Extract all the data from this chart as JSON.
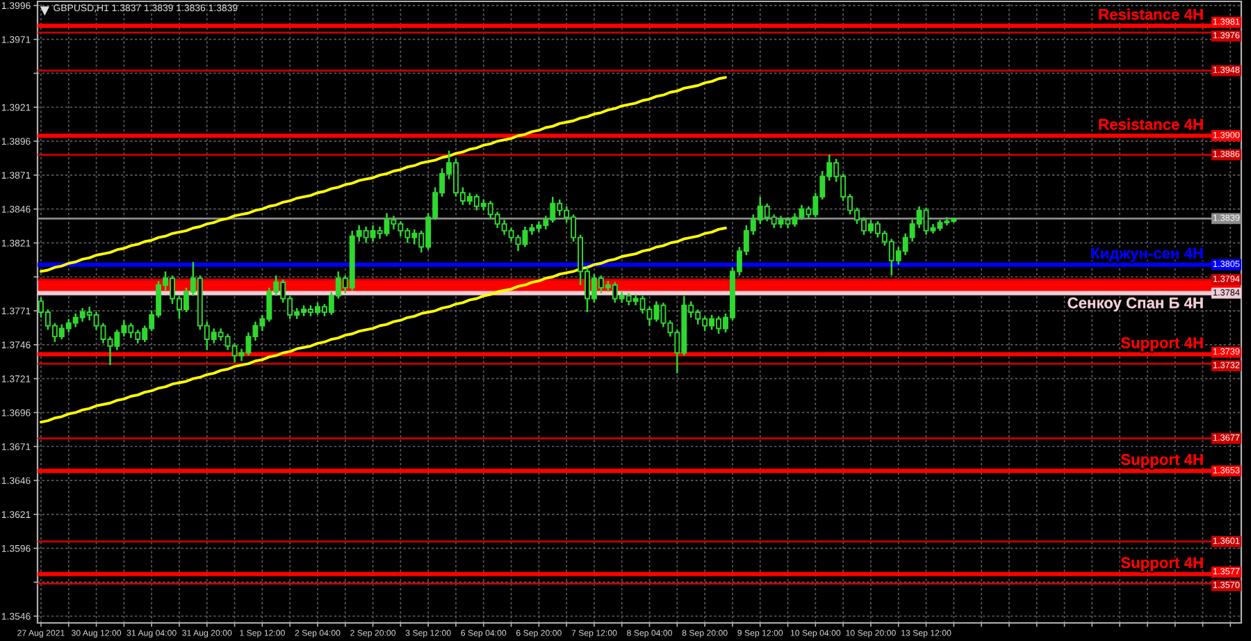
{
  "chart_data": {
    "type": "candlestick",
    "title": "GBPUSD,H1 1.3837 1.3839 1.3836 1.3839",
    "categories": [
      "27 Aug 2021",
      null,
      null,
      null,
      null,
      null,
      null,
      null,
      "30 Aug 12:00",
      null,
      null,
      null,
      null,
      null,
      null,
      null,
      "31 Aug 04:00",
      null,
      null,
      null,
      null,
      null,
      null,
      null,
      "31 Aug 20:00",
      null,
      null,
      null,
      null,
      null,
      null,
      null,
      "1 Sep 12:00",
      null,
      null,
      null,
      null,
      null,
      null,
      null,
      "2 Sep 04:00",
      null,
      null,
      null,
      null,
      null,
      null,
      null,
      "2 Sep 20:00",
      null,
      null,
      null,
      null,
      null,
      null,
      null,
      "3 Sep 12:00",
      null,
      null,
      null,
      null,
      null,
      null,
      null,
      "6 Sep 04:00",
      null,
      null,
      null,
      null,
      null,
      null,
      null,
      "6 Sep 20:00",
      null,
      null,
      null,
      null,
      null,
      null,
      null,
      "7 Sep 12:00",
      null,
      null,
      null,
      null,
      null,
      null,
      null,
      "8 Sep 04:00",
      null,
      null,
      null,
      null,
      null,
      null,
      null,
      "8 Sep 20:00",
      null,
      null,
      null,
      null,
      null,
      null,
      null,
      "9 Sep 12:00",
      null,
      null,
      null,
      null,
      null,
      null,
      null,
      "10 Sep 04:00",
      null,
      null,
      null,
      null,
      null,
      null,
      null,
      "10 Sep 20:00",
      null,
      null,
      null,
      null,
      null,
      null,
      null,
      "13 Sep 12:00",
      null,
      null,
      null,
      null
    ],
    "ohlc": [
      [
        1.3778,
        1.3781,
        1.3766,
        1.377
      ],
      [
        1.377,
        1.3772,
        1.3757,
        1.376
      ],
      [
        1.376,
        1.3762,
        1.3748,
        1.3752
      ],
      [
        1.3752,
        1.3761,
        1.375,
        1.3758
      ],
      [
        1.3758,
        1.3765,
        1.3755,
        1.3762
      ],
      [
        1.3762,
        1.3769,
        1.3759,
        1.3766
      ],
      [
        1.3766,
        1.3773,
        1.3763,
        1.377
      ],
      [
        1.377,
        1.3774,
        1.3764,
        1.3768
      ],
      [
        1.3768,
        1.377,
        1.3757,
        1.376
      ],
      [
        1.376,
        1.3762,
        1.3747,
        1.375
      ],
      [
        1.375,
        1.3752,
        1.3731,
        1.3745
      ],
      [
        1.3745,
        1.3757,
        1.3742,
        1.3755
      ],
      [
        1.3755,
        1.3764,
        1.3752,
        1.376
      ],
      [
        1.376,
        1.3762,
        1.3751,
        1.3755
      ],
      [
        1.3755,
        1.3757,
        1.3747,
        1.375
      ],
      [
        1.375,
        1.376,
        1.3748,
        1.3758
      ],
      [
        1.3758,
        1.3771,
        1.3756,
        1.3768
      ],
      [
        1.3768,
        1.3793,
        1.3766,
        1.379
      ],
      [
        1.379,
        1.38,
        1.3786,
        1.3795
      ],
      [
        1.3795,
        1.3797,
        1.3776,
        1.378
      ],
      [
        1.378,
        1.3782,
        1.3765,
        1.3772
      ],
      [
        1.3772,
        1.3788,
        1.377,
        1.3785
      ],
      [
        1.3785,
        1.3807,
        1.3782,
        1.3795
      ],
      [
        1.3795,
        1.3797,
        1.3757,
        1.376
      ],
      [
        1.376,
        1.3763,
        1.3742,
        1.375
      ],
      [
        1.375,
        1.3758,
        1.3747,
        1.3755
      ],
      [
        1.3755,
        1.3758,
        1.3749,
        1.3752
      ],
      [
        1.3752,
        1.3754,
        1.3742,
        1.3745
      ],
      [
        1.3745,
        1.3747,
        1.3733,
        1.3738
      ],
      [
        1.3738,
        1.3743,
        1.3734,
        1.374
      ],
      [
        1.374,
        1.3755,
        1.3738,
        1.3752
      ],
      [
        1.3752,
        1.3763,
        1.3749,
        1.376
      ],
      [
        1.376,
        1.3768,
        1.3756,
        1.3765
      ],
      [
        1.3765,
        1.3788,
        1.3763,
        1.3785
      ],
      [
        1.3785,
        1.3797,
        1.3782,
        1.3792
      ],
      [
        1.3792,
        1.3794,
        1.3777,
        1.378
      ],
      [
        1.378,
        1.3782,
        1.3765,
        1.3768
      ],
      [
        1.3768,
        1.3773,
        1.3765,
        1.377
      ],
      [
        1.377,
        1.3775,
        1.3767,
        1.3772
      ],
      [
        1.3772,
        1.3775,
        1.3767,
        1.377
      ],
      [
        1.377,
        1.3777,
        1.3768,
        1.3774
      ],
      [
        1.3774,
        1.3776,
        1.3767,
        1.377
      ],
      [
        1.377,
        1.3785,
        1.3768,
        1.3782
      ],
      [
        1.3782,
        1.38,
        1.378,
        1.3795
      ],
      [
        1.3795,
        1.3797,
        1.3784,
        1.3788
      ],
      [
        1.3788,
        1.383,
        1.3786,
        1.3826
      ],
      [
        1.3826,
        1.3834,
        1.3822,
        1.383
      ],
      [
        1.383,
        1.3833,
        1.3821,
        1.3825
      ],
      [
        1.3825,
        1.3834,
        1.3822,
        1.383
      ],
      [
        1.383,
        1.3833,
        1.3824,
        1.3828
      ],
      [
        1.3828,
        1.3843,
        1.3826,
        1.3838
      ],
      [
        1.3838,
        1.3841,
        1.3831,
        1.3835
      ],
      [
        1.3835,
        1.3837,
        1.3826,
        1.383
      ],
      [
        1.383,
        1.3832,
        1.3821,
        1.3825
      ],
      [
        1.3825,
        1.3831,
        1.382,
        1.3828
      ],
      [
        1.3828,
        1.383,
        1.3814,
        1.3818
      ],
      [
        1.3818,
        1.3843,
        1.3816,
        1.384
      ],
      [
        1.384,
        1.3862,
        1.3838,
        1.3858
      ],
      [
        1.3858,
        1.3876,
        1.3855,
        1.3872
      ],
      [
        1.3872,
        1.3889,
        1.3868,
        1.388
      ],
      [
        1.388,
        1.3883,
        1.3855,
        1.3858
      ],
      [
        1.3858,
        1.3862,
        1.3849,
        1.3852
      ],
      [
        1.3852,
        1.3858,
        1.3849,
        1.3855
      ],
      [
        1.3855,
        1.3857,
        1.3845,
        1.3848
      ],
      [
        1.3848,
        1.3853,
        1.3845,
        1.385
      ],
      [
        1.385,
        1.3852,
        1.3839,
        1.3842
      ],
      [
        1.3842,
        1.3844,
        1.3832,
        1.3835
      ],
      [
        1.3835,
        1.3838,
        1.3827,
        1.383
      ],
      [
        1.383,
        1.3832,
        1.3822,
        1.3825
      ],
      [
        1.3825,
        1.3827,
        1.3815,
        1.382
      ],
      [
        1.382,
        1.3833,
        1.3818,
        1.383
      ],
      [
        1.383,
        1.3835,
        1.3827,
        1.3832
      ],
      [
        1.3832,
        1.3837,
        1.3829,
        1.3834
      ],
      [
        1.3834,
        1.3841,
        1.3831,
        1.3838
      ],
      [
        1.3838,
        1.3855,
        1.3836,
        1.385
      ],
      [
        1.385,
        1.3853,
        1.3841,
        1.3845
      ],
      [
        1.3845,
        1.3848,
        1.3836,
        1.384
      ],
      [
        1.384,
        1.3842,
        1.3822,
        1.3825
      ],
      [
        1.3825,
        1.3827,
        1.379,
        1.38
      ],
      [
        1.38,
        1.3803,
        1.377,
        1.378
      ],
      [
        1.378,
        1.3798,
        1.3777,
        1.3795
      ],
      [
        1.3795,
        1.3797,
        1.3784,
        1.3788
      ],
      [
        1.3788,
        1.3793,
        1.3785,
        1.379
      ],
      [
        1.379,
        1.3792,
        1.3777,
        1.378
      ],
      [
        1.378,
        1.3785,
        1.3777,
        1.3782
      ],
      [
        1.3782,
        1.3784,
        1.3775,
        1.3778
      ],
      [
        1.3778,
        1.3783,
        1.3775,
        1.378
      ],
      [
        1.378,
        1.3782,
        1.3769,
        1.3772
      ],
      [
        1.3772,
        1.3774,
        1.376,
        1.3765
      ],
      [
        1.3765,
        1.3778,
        1.3763,
        1.3775
      ],
      [
        1.3775,
        1.3777,
        1.3759,
        1.3762
      ],
      [
        1.3762,
        1.3764,
        1.3752,
        1.3755
      ],
      [
        1.3755,
        1.3757,
        1.3725,
        1.374
      ],
      [
        1.374,
        1.3782,
        1.3738,
        1.3775
      ],
      [
        1.3775,
        1.3778,
        1.3766,
        1.377
      ],
      [
        1.377,
        1.3772,
        1.3761,
        1.3765
      ],
      [
        1.3765,
        1.3767,
        1.3756,
        1.376
      ],
      [
        1.376,
        1.3768,
        1.3757,
        1.3765
      ],
      [
        1.3765,
        1.3767,
        1.3754,
        1.3758
      ],
      [
        1.3758,
        1.3769,
        1.3755,
        1.3766
      ],
      [
        1.3766,
        1.3803,
        1.3764,
        1.38
      ],
      [
        1.38,
        1.3818,
        1.3797,
        1.3815
      ],
      [
        1.3815,
        1.3834,
        1.3812,
        1.383
      ],
      [
        1.383,
        1.3842,
        1.3827,
        1.3838
      ],
      [
        1.3838,
        1.3855,
        1.3835,
        1.3848
      ],
      [
        1.3848,
        1.385,
        1.3837,
        1.384
      ],
      [
        1.384,
        1.3842,
        1.3832,
        1.3835
      ],
      [
        1.3835,
        1.3841,
        1.3832,
        1.3838
      ],
      [
        1.3838,
        1.384,
        1.3832,
        1.3835
      ],
      [
        1.3835,
        1.3843,
        1.3833,
        1.384
      ],
      [
        1.384,
        1.3849,
        1.3838,
        1.3846
      ],
      [
        1.3846,
        1.3848,
        1.3839,
        1.3842
      ],
      [
        1.3842,
        1.3858,
        1.384,
        1.3855
      ],
      [
        1.3855,
        1.3874,
        1.3853,
        1.387
      ],
      [
        1.387,
        1.3886,
        1.3867,
        1.388
      ],
      [
        1.388,
        1.3883,
        1.3866,
        1.387
      ],
      [
        1.387,
        1.3872,
        1.3852,
        1.3855
      ],
      [
        1.3855,
        1.3857,
        1.3842,
        1.3845
      ],
      [
        1.3845,
        1.3847,
        1.3835,
        1.3838
      ],
      [
        1.3838,
        1.384,
        1.3827,
        1.383
      ],
      [
        1.383,
        1.3838,
        1.3828,
        1.3835
      ],
      [
        1.3835,
        1.3837,
        1.3825,
        1.3828
      ],
      [
        1.3828,
        1.383,
        1.3819,
        1.3822
      ],
      [
        1.3822,
        1.3824,
        1.3797,
        1.3808
      ],
      [
        1.3808,
        1.3818,
        1.3805,
        1.3815
      ],
      [
        1.3815,
        1.3828,
        1.3812,
        1.3825
      ],
      [
        1.3825,
        1.3838,
        1.3822,
        1.3835
      ],
      [
        1.3835,
        1.3848,
        1.3832,
        1.3845
      ],
      [
        1.3845,
        1.3847,
        1.3827,
        1.383
      ],
      [
        1.383,
        1.3835,
        1.3828,
        1.3832
      ],
      [
        1.3832,
        1.3838,
        1.383,
        1.3836
      ],
      [
        1.3836,
        1.384,
        1.3834,
        1.3837
      ],
      [
        1.3837,
        1.3839,
        1.3836,
        1.3839
      ]
    ],
    "color": "#2fd82f",
    "ylim": [
      1.3541,
      1.3999
    ],
    "yticks": [
      1.3996,
      1.3971,
      {
        "value": 1.3946,
        "label": null
      },
      1.3921,
      1.3896,
      1.3871,
      1.3846,
      1.3821,
      {
        "value": 1.3796,
        "label": null
      },
      1.3771,
      1.3746,
      1.3721,
      1.3696,
      1.3671,
      1.3646,
      1.3621,
      1.3596,
      {
        "value": 1.3571,
        "label": null
      },
      1.3546
    ],
    "grid": true,
    "bands": [
      {
        "axis": "y",
        "from": 1.3784,
        "to": 1.3794,
        "color": "#ff0000"
      }
    ],
    "ref_lines": [
      {
        "axis": "y",
        "value": 1.3981,
        "label": "Resistance 4H",
        "color": "#ff0000"
      },
      {
        "axis": "y",
        "value": 1.3976,
        "color": "#cc0000"
      },
      {
        "axis": "y",
        "value": 1.3948,
        "color": "#cc0000"
      },
      {
        "axis": "y",
        "value": 1.39,
        "label": "Resistance 4H",
        "color": "#ff0000"
      },
      {
        "axis": "y",
        "value": 1.3886,
        "color": "#cc0000"
      },
      {
        "axis": "y",
        "value": 1.3839,
        "color": "#8c8c8c"
      },
      {
        "axis": "y",
        "value": 1.3805,
        "label": "Киджун-сен 4H",
        "color": "#0000ff"
      },
      {
        "axis": "y",
        "value": 1.3794,
        "color": "#cc0000"
      },
      {
        "axis": "y",
        "value": 1.3784,
        "label": "Сенкоу Спан Б 4H",
        "color": "#f2cdd6"
      },
      {
        "axis": "y",
        "value": 1.3739,
        "label": "Support 4H",
        "color": "#ff0000"
      },
      {
        "axis": "y",
        "value": 1.3732,
        "color": "#cc0000"
      },
      {
        "axis": "y",
        "value": 1.3677,
        "color": "#cc0000"
      },
      {
        "axis": "y",
        "value": 1.3653,
        "label": "Support 4H",
        "color": "#ff0000"
      },
      {
        "axis": "y",
        "value": 1.3601,
        "color": "#cc0000"
      },
      {
        "axis": "y",
        "value": 1.3577,
        "label": "Support 4H",
        "color": "#ff0000"
      },
      {
        "axis": "y",
        "value": 1.357,
        "color": "#cc0000"
      }
    ],
    "annotations": [
      {
        "text": "1.3981",
        "y": 1.3981
      },
      {
        "text": "1.3976",
        "y": 1.3976
      },
      {
        "text": "1.3948",
        "y": 1.3948
      },
      {
        "text": "1.3900",
        "y": 1.39
      },
      {
        "text": "1.3886",
        "y": 1.3886
      },
      {
        "text": "1.3839",
        "y": 1.3839
      },
      {
        "text": "1.3805",
        "y": 1.3805
      },
      {
        "text": "1.3794",
        "y": 1.3794
      },
      {
        "text": "1.3784",
        "y": 1.3784
      },
      {
        "text": "1.3739",
        "y": 1.3739
      },
      {
        "text": "1.3732",
        "y": 1.3732
      },
      {
        "text": "1.3677",
        "y": 1.3677
      },
      {
        "text": "1.3653",
        "y": 1.3653
      },
      {
        "text": "1.3601",
        "y": 1.3601
      },
      {
        "text": "1.3577",
        "y": 1.3577
      },
      {
        "text": "1.3570",
        "y": 1.357
      }
    ],
    "series": [
      {
        "type": "line",
        "color": "#ffff00",
        "values": [
          1.38,
          1.3801,
          1.3803,
          1.3804,
          1.3806,
          1.3807,
          1.3809,
          1.381,
          1.3812,
          1.3813,
          1.3814,
          1.3816,
          1.3817,
          1.3819,
          1.382,
          1.3822,
          1.3823,
          1.3825,
          1.3826,
          1.3828,
          1.3829,
          1.383,
          1.3832,
          1.3833,
          1.3835,
          1.3836,
          1.3838,
          1.3839,
          1.3841,
          1.3842,
          1.3843,
          1.3845,
          1.3846,
          1.3848,
          1.3849,
          1.3851,
          1.3852,
          1.3854,
          1.3855,
          1.3856,
          1.3858,
          1.3859,
          1.3861,
          1.3862,
          1.3864,
          1.3865,
          1.3867,
          1.3868,
          1.3869,
          1.3871,
          1.3872,
          1.3874,
          1.3875,
          1.3877,
          1.3878,
          1.388,
          1.3881,
          1.3882,
          1.3884,
          1.3885,
          1.3887,
          1.3888,
          1.389,
          1.3891,
          1.3893,
          1.3894,
          1.3896,
          1.3897,
          1.3898,
          1.39,
          1.3901,
          1.3903,
          1.3904,
          1.3906,
          1.3907,
          1.3909,
          1.391,
          1.3911,
          1.3913,
          1.3914,
          1.3916,
          1.3917,
          1.3919,
          1.392,
          1.3922,
          1.3923,
          1.3924,
          1.3926,
          1.3927,
          1.3929,
          1.393,
          1.3932,
          1.3933,
          1.3935,
          1.3936,
          1.3937,
          1.3939,
          1.394,
          1.3942,
          1.3943,
          null,
          null,
          null,
          null,
          null,
          null,
          null,
          null,
          null,
          null,
          null,
          null,
          null,
          null,
          null,
          null,
          null,
          null,
          null,
          null,
          null,
          null,
          null,
          null,
          null,
          null,
          null,
          null,
          null,
          null,
          null,
          null,
          null
        ]
      },
      {
        "type": "line",
        "color": "#ffff00",
        "values": [
          1.3689,
          1.369,
          1.3692,
          1.3693,
          1.3695,
          1.3696,
          1.3698,
          1.3699,
          1.3701,
          1.3702,
          1.3703,
          1.3705,
          1.3706,
          1.3708,
          1.3709,
          1.3711,
          1.3712,
          1.3714,
          1.3715,
          1.3717,
          1.3718,
          1.3719,
          1.3721,
          1.3722,
          1.3724,
          1.3725,
          1.3727,
          1.3728,
          1.373,
          1.3731,
          1.3732,
          1.3734,
          1.3735,
          1.3737,
          1.3738,
          1.374,
          1.3741,
          1.3743,
          1.3744,
          1.3745,
          1.3747,
          1.3748,
          1.375,
          1.3751,
          1.3753,
          1.3754,
          1.3756,
          1.3757,
          1.3758,
          1.376,
          1.3761,
          1.3763,
          1.3764,
          1.3766,
          1.3767,
          1.3769,
          1.377,
          1.3771,
          1.3773,
          1.3774,
          1.3776,
          1.3777,
          1.3779,
          1.378,
          1.3782,
          1.3783,
          1.3785,
          1.3786,
          1.3787,
          1.3789,
          1.379,
          1.3792,
          1.3793,
          1.3795,
          1.3796,
          1.3798,
          1.3799,
          1.38,
          1.3802,
          1.3803,
          1.3805,
          1.3806,
          1.3808,
          1.3809,
          1.3811,
          1.3812,
          1.3813,
          1.3815,
          1.3816,
          1.3818,
          1.3819,
          1.3821,
          1.3822,
          1.3824,
          1.3825,
          1.3826,
          1.3828,
          1.3829,
          1.3831,
          1.3832,
          null,
          null,
          null,
          null,
          null,
          null,
          null,
          null,
          null,
          null,
          null,
          null,
          null,
          null,
          null,
          null,
          null,
          null,
          null,
          null,
          null,
          null,
          null,
          null,
          null,
          null,
          null,
          null,
          null,
          null,
          null,
          null,
          null
        ]
      }
    ]
  }
}
